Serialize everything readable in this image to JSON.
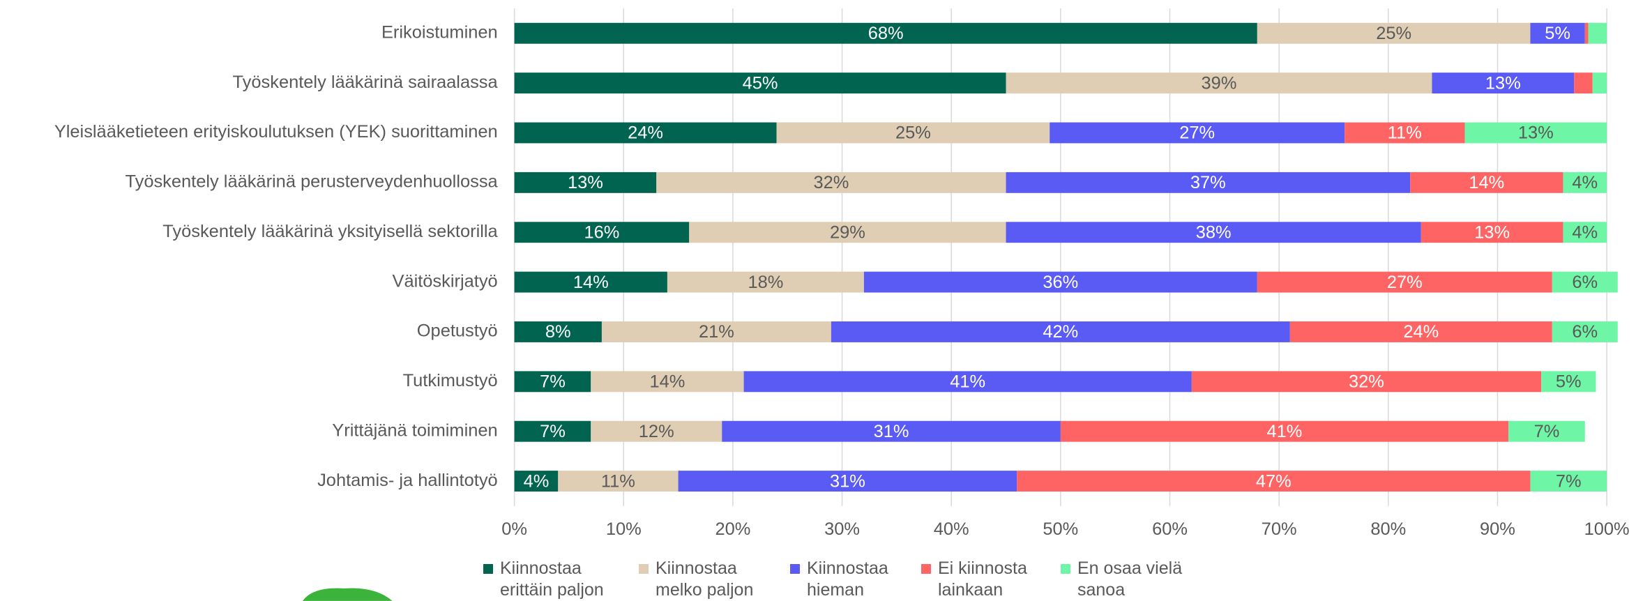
{
  "chart_data": {
    "type": "stacked-bar-horizontal",
    "categories": [
      "Erikoistuminen",
      "Työskentely lääkärinä sairaalassa",
      "Yleislääketieteen erityiskoulutuksen (YEK) suorittaminen",
      "Työskentely lääkärinä perusterveydenhuollossa",
      "Työskentely lääkärinä yksityisellä sektorilla",
      "Väitöskirjatyö",
      "Opetustyö",
      "Tutkimustyö",
      "Yrittäjänä toimiminen",
      "Johtamis- ja hallintotyö"
    ],
    "series": [
      {
        "name": "Kiinnostaa erittäin paljon",
        "color": "#006450",
        "values": [
          68,
          45,
          24,
          13,
          16,
          14,
          8,
          7,
          7,
          4
        ],
        "value_labels": [
          "68%",
          "45%",
          "24%",
          "13%",
          "16%",
          "14%",
          "8%",
          "7%",
          "7%",
          "4%"
        ]
      },
      {
        "name": "Kiinnostaa melko paljon",
        "color": "#dfcdb4",
        "values": [
          25,
          39,
          25,
          32,
          29,
          18,
          21,
          14,
          12,
          11
        ],
        "value_labels": [
          "25%",
          "39%",
          "25%",
          "32%",
          "29%",
          "18%",
          "21%",
          "14%",
          "12%",
          "11%"
        ]
      },
      {
        "name": "Kiinnostaa hieman",
        "color": "#5a5af5",
        "values": [
          5,
          13,
          27,
          37,
          38,
          36,
          42,
          41,
          31,
          31
        ],
        "value_labels": [
          "5%",
          "13%",
          "27%",
          "37%",
          "38%",
          "36%",
          "42%",
          "41%",
          "31%",
          "31%"
        ]
      },
      {
        "name": "Ei kiinnosta lainkaan",
        "color": "#ff6464",
        "values": [
          0.3,
          1.7,
          11,
          14,
          13,
          27,
          24,
          32,
          41,
          47
        ],
        "value_labels": [
          null,
          null,
          "11%",
          "14%",
          "13%",
          "27%",
          "24%",
          "32%",
          "41%",
          "47%"
        ]
      },
      {
        "name": "En osaa vielä sanoa",
        "color": "#6ef5a5",
        "values": [
          1.7,
          1.3,
          13,
          4,
          4,
          6,
          6,
          5,
          7,
          7
        ],
        "value_labels": [
          null,
          null,
          "13%",
          "4%",
          "4%",
          "6%",
          "6%",
          "5%",
          "7%",
          "7%"
        ]
      }
    ],
    "xlim": [
      0,
      100
    ],
    "xticks": [
      {
        "value": 0,
        "label": "0%"
      },
      {
        "value": 10,
        "label": "10%"
      },
      {
        "value": 20,
        "label": "20%"
      },
      {
        "value": 30,
        "label": "30%"
      },
      {
        "value": 40,
        "label": "40%"
      },
      {
        "value": 50,
        "label": "50%"
      },
      {
        "value": 60,
        "label": "60%"
      },
      {
        "value": 70,
        "label": "70%"
      },
      {
        "value": 80,
        "label": "80%"
      },
      {
        "value": 90,
        "label": "90%"
      },
      {
        "value": 100,
        "label": "100%"
      }
    ],
    "grid": true,
    "legend": "bottom"
  }
}
